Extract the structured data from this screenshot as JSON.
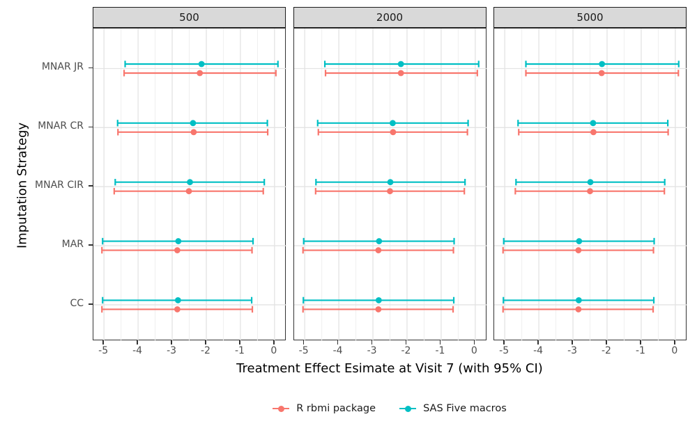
{
  "chart_data": {
    "type": "scatter",
    "subtype": "dot-with-95ci-errorbars, horizontal, faceted",
    "title": "",
    "xlabel": "Treatment Effect Esimate at Visit 7 (with 95% CI)",
    "ylabel": "Imputation Strategy",
    "categories": [
      "MNAR JR",
      "MNAR CR",
      "MNAR CIR",
      "MAR",
      "CC"
    ],
    "x_ticks": [
      "-5",
      "-4",
      "-3",
      "-2",
      "-1",
      "0"
    ],
    "x_tick_values": [
      -5,
      -4,
      -3,
      -2,
      -1,
      0
    ],
    "xlim": [
      -5.31,
      0.35
    ],
    "grid": "on",
    "legend_position": "bottom",
    "panel_background": "#ffffff",
    "strip_background": "#d9d9d9",
    "gridline_color": "#e7e7e7",
    "series_meta": [
      {
        "name": "R rbmi package",
        "color": "#F8766D"
      },
      {
        "name": "SAS Five macros",
        "color": "#00BFC4"
      }
    ],
    "facets": [
      {
        "label": "500",
        "series": [
          {
            "name": "R rbmi package",
            "points": [
              {
                "category": "MNAR JR",
                "estimate": -2.19,
                "ci_low": -4.41,
                "ci_high": 0.04
              },
              {
                "category": "MNAR CR",
                "estimate": -2.37,
                "ci_low": -4.59,
                "ci_high": -0.2
              },
              {
                "category": "MNAR CIR",
                "estimate": -2.51,
                "ci_low": -4.7,
                "ci_high": -0.33
              },
              {
                "category": "MAR",
                "estimate": -2.85,
                "ci_low": -5.06,
                "ci_high": -0.66
              },
              {
                "category": "CC",
                "estimate": -2.85,
                "ci_low": -5.06,
                "ci_high": -0.65
              }
            ]
          },
          {
            "name": "SAS Five macros",
            "points": [
              {
                "category": "MNAR JR",
                "estimate": -2.14,
                "ci_low": -4.38,
                "ci_high": 0.1
              },
              {
                "category": "MNAR CR",
                "estimate": -2.39,
                "ci_low": -4.6,
                "ci_high": -0.21
              },
              {
                "category": "MNAR CIR",
                "estimate": -2.48,
                "ci_low": -4.67,
                "ci_high": -0.3
              },
              {
                "category": "MAR",
                "estimate": -2.82,
                "ci_low": -5.04,
                "ci_high": -0.63
              },
              {
                "category": "CC",
                "estimate": -2.83,
                "ci_low": -5.04,
                "ci_high": -0.67
              }
            ]
          }
        ]
      },
      {
        "label": "2000",
        "series": [
          {
            "name": "R rbmi package",
            "points": [
              {
                "category": "MNAR JR",
                "estimate": -2.18,
                "ci_low": -4.39,
                "ci_high": 0.06
              },
              {
                "category": "MNAR CR",
                "estimate": -2.41,
                "ci_low": -4.6,
                "ci_high": -0.23
              },
              {
                "category": "MNAR CIR",
                "estimate": -2.5,
                "ci_low": -4.68,
                "ci_high": -0.32
              },
              {
                "category": "MAR",
                "estimate": -2.84,
                "ci_low": -5.05,
                "ci_high": -0.64
              },
              {
                "category": "CC",
                "estimate": -2.84,
                "ci_low": -5.05,
                "ci_high": -0.65
              }
            ]
          },
          {
            "name": "SAS Five macros",
            "points": [
              {
                "category": "MNAR JR",
                "estimate": -2.18,
                "ci_low": -4.41,
                "ci_high": 0.1
              },
              {
                "category": "MNAR CR",
                "estimate": -2.42,
                "ci_low": -4.62,
                "ci_high": -0.21
              },
              {
                "category": "MNAR CIR",
                "estimate": -2.49,
                "ci_low": -4.67,
                "ci_high": -0.3
              },
              {
                "category": "MAR",
                "estimate": -2.82,
                "ci_low": -5.03,
                "ci_high": -0.62
              },
              {
                "category": "CC",
                "estimate": -2.83,
                "ci_low": -5.04,
                "ci_high": -0.63
              }
            ]
          }
        ]
      },
      {
        "label": "5000",
        "series": [
          {
            "name": "R rbmi package",
            "points": [
              {
                "category": "MNAR JR",
                "estimate": -2.16,
                "ci_low": -4.38,
                "ci_high": 0.09
              },
              {
                "category": "MNAR CR",
                "estimate": -2.4,
                "ci_low": -4.59,
                "ci_high": -0.21
              },
              {
                "category": "MNAR CIR",
                "estimate": -2.5,
                "ci_low": -4.69,
                "ci_high": -0.32
              },
              {
                "category": "MAR",
                "estimate": -2.84,
                "ci_low": -5.05,
                "ci_high": -0.64
              },
              {
                "category": "CC",
                "estimate": -2.84,
                "ci_low": -5.05,
                "ci_high": -0.65
              }
            ]
          },
          {
            "name": "SAS Five macros",
            "points": [
              {
                "category": "MNAR JR",
                "estimate": -2.15,
                "ci_low": -4.38,
                "ci_high": 0.1
              },
              {
                "category": "MNAR CR",
                "estimate": -2.41,
                "ci_low": -4.61,
                "ci_high": -0.22
              },
              {
                "category": "MNAR CIR",
                "estimate": -2.49,
                "ci_low": -4.67,
                "ci_high": -0.31
              },
              {
                "category": "MAR",
                "estimate": -2.82,
                "ci_low": -5.03,
                "ci_high": -0.62
              },
              {
                "category": "CC",
                "estimate": -2.83,
                "ci_low": -5.04,
                "ci_high": -0.63
              }
            ]
          }
        ]
      }
    ]
  }
}
